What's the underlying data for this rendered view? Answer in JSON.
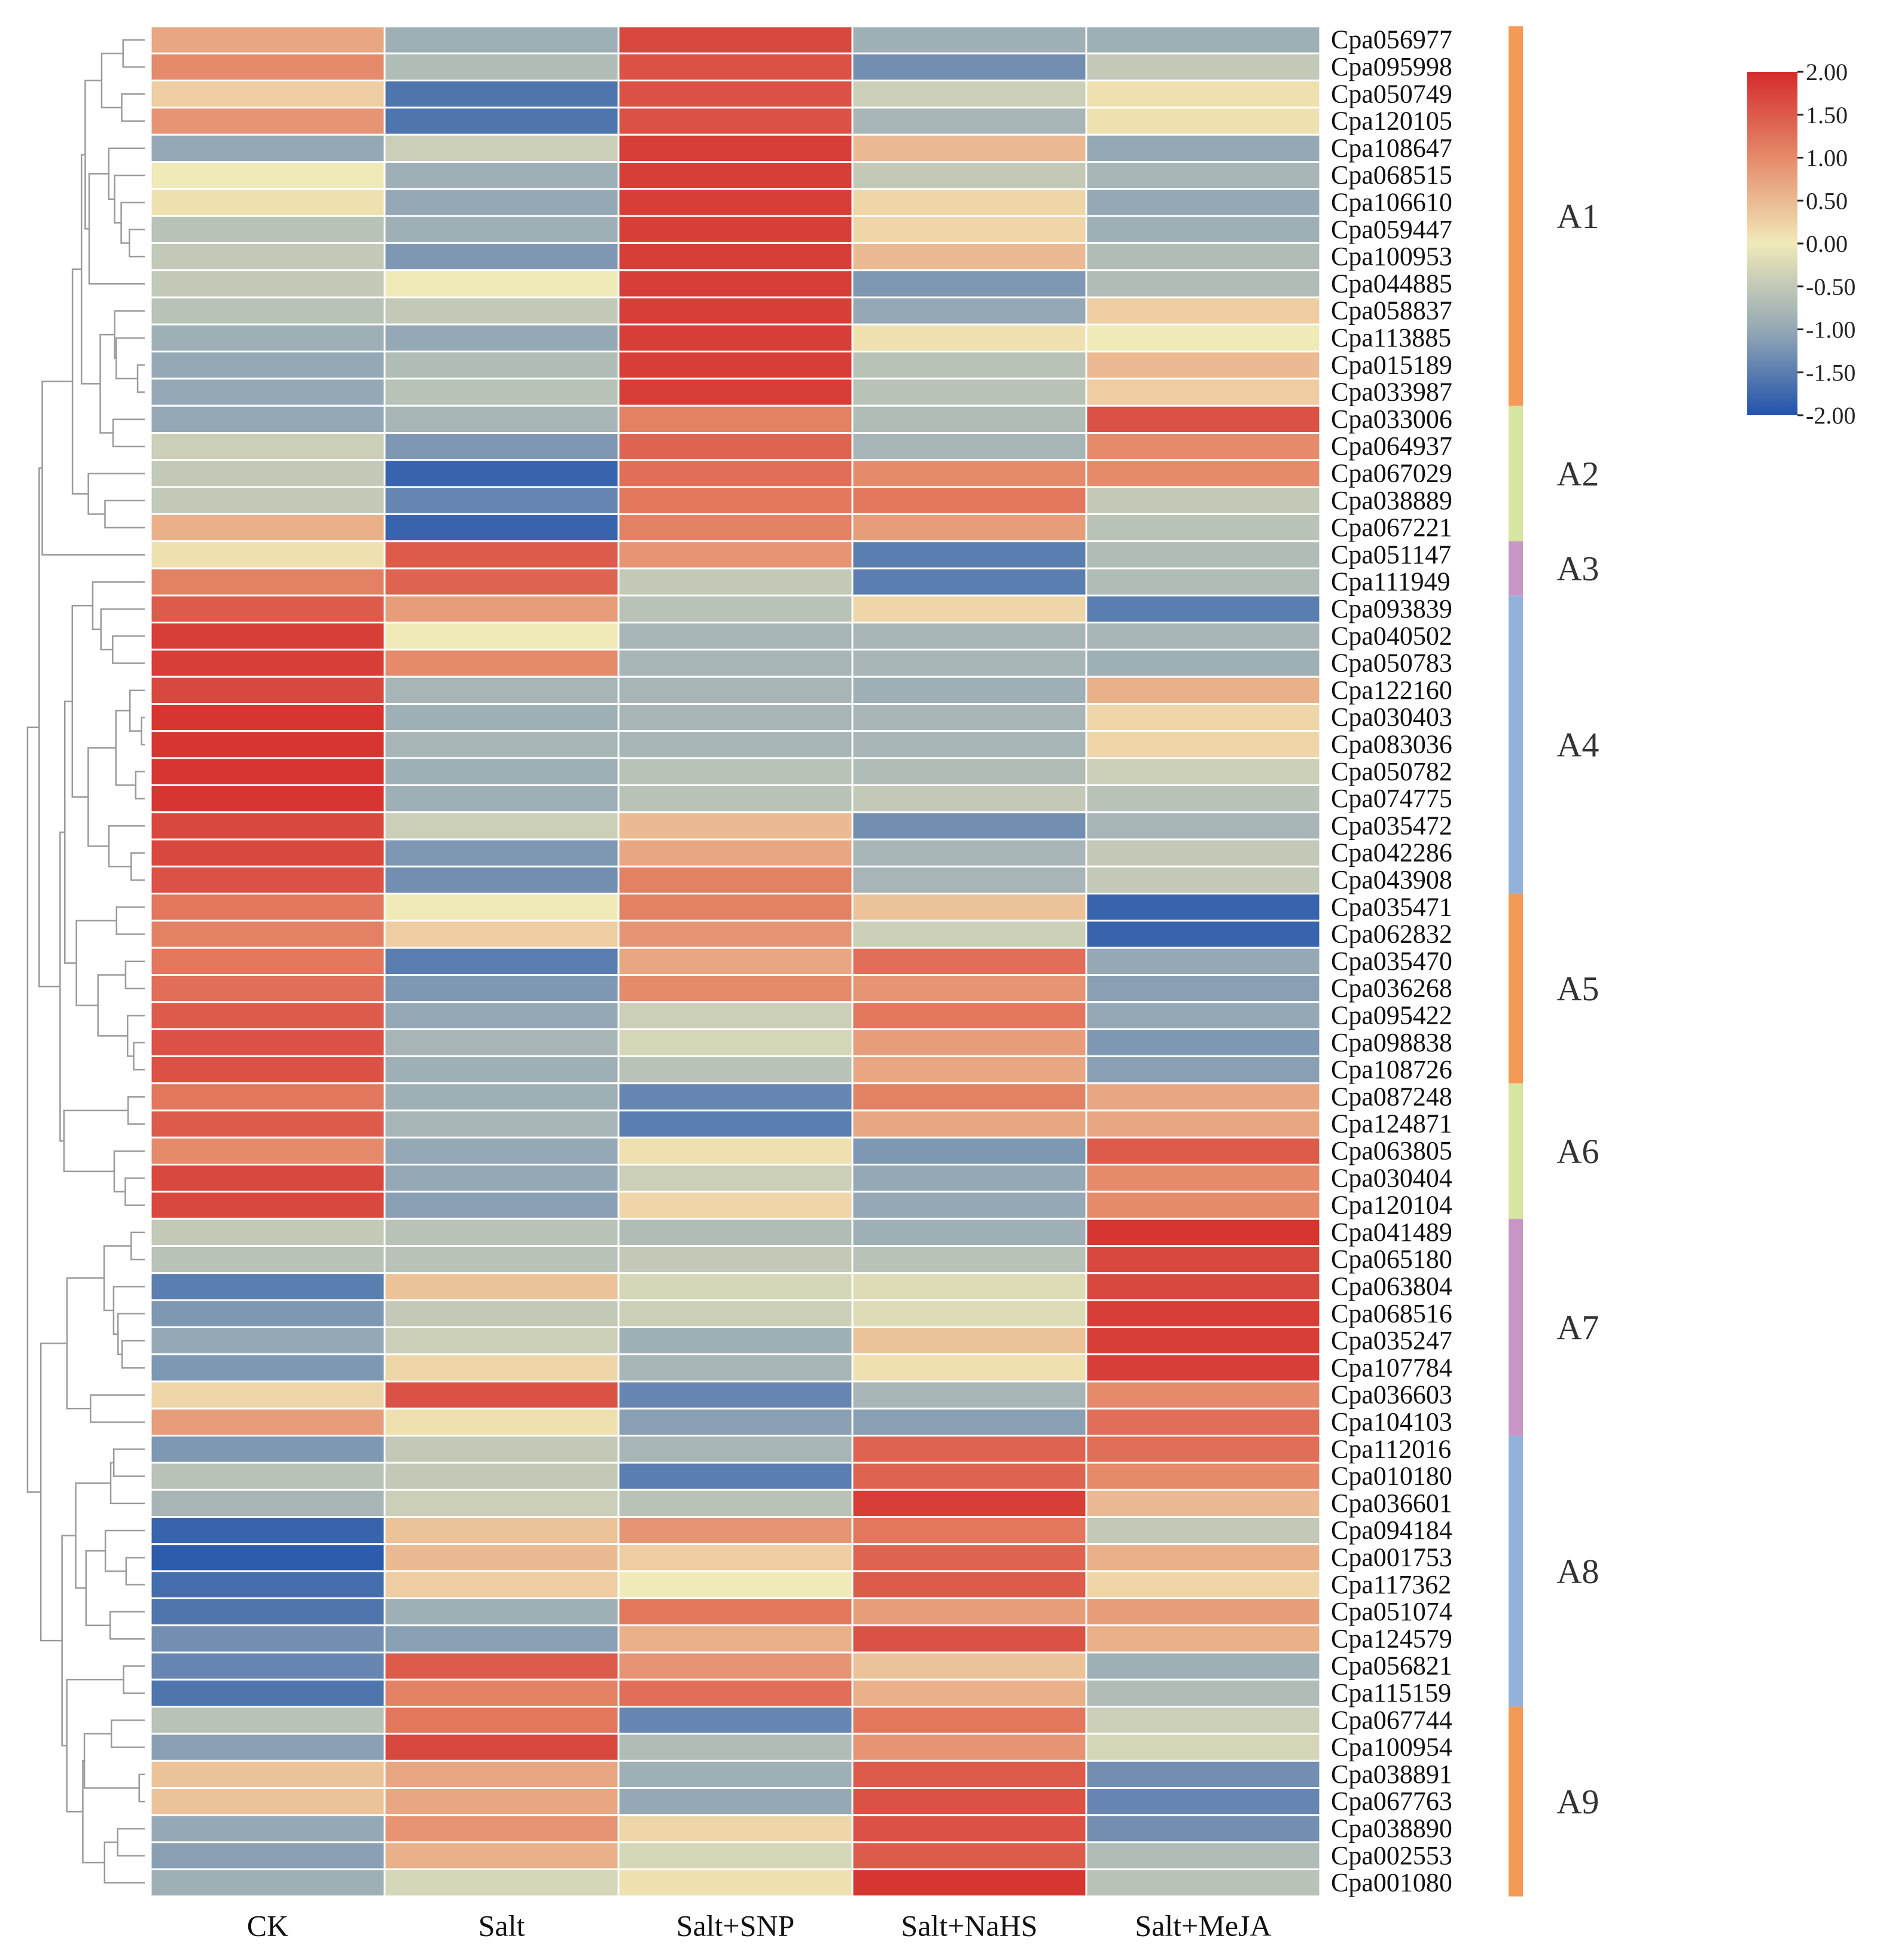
{
  "chart_data": {
    "type": "heatmap",
    "title": "",
    "columns": [
      "CK",
      "Salt",
      "Salt+SNP",
      "Salt+NaHS",
      "Salt+MeJA"
    ],
    "rows": [
      "Cpa056977",
      "Cpa095998",
      "Cpa050749",
      "Cpa120105",
      "Cpa108647",
      "Cpa068515",
      "Cpa106610",
      "Cpa059447",
      "Cpa100953",
      "Cpa044885",
      "Cpa058837",
      "Cpa113885",
      "Cpa015189",
      "Cpa033987",
      "Cpa033006",
      "Cpa064937",
      "Cpa067029",
      "Cpa038889",
      "Cpa067221",
      "Cpa051147",
      "Cpa111949",
      "Cpa093839",
      "Cpa040502",
      "Cpa050783",
      "Cpa122160",
      "Cpa030403",
      "Cpa083036",
      "Cpa050782",
      "Cpa074775",
      "Cpa035472",
      "Cpa042286",
      "Cpa043908",
      "Cpa035471",
      "Cpa062832",
      "Cpa035470",
      "Cpa036268",
      "Cpa095422",
      "Cpa098838",
      "Cpa108726",
      "Cpa087248",
      "Cpa124871",
      "Cpa063805",
      "Cpa030404",
      "Cpa120104",
      "Cpa041489",
      "Cpa065180",
      "Cpa063804",
      "Cpa068516",
      "Cpa035247",
      "Cpa107784",
      "Cpa036603",
      "Cpa104103",
      "Cpa112016",
      "Cpa010180",
      "Cpa036601",
      "Cpa094184",
      "Cpa001753",
      "Cpa117362",
      "Cpa051074",
      "Cpa124579",
      "Cpa056821",
      "Cpa115159",
      "Cpa067744",
      "Cpa100954",
      "Cpa038891",
      "Cpa067763",
      "Cpa038890",
      "Cpa002553",
      "Cpa001080"
    ],
    "values": [
      [
        0.7,
        -0.9,
        1.7,
        -0.9,
        -0.9
      ],
      [
        1.0,
        -0.7,
        1.6,
        -1.3,
        -0.5
      ],
      [
        0.3,
        -1.6,
        1.6,
        -0.4,
        0.1
      ],
      [
        0.9,
        -1.6,
        1.6,
        -0.8,
        0.1
      ],
      [
        -1.0,
        -0.4,
        1.8,
        0.5,
        -1.0
      ],
      [
        0.0,
        -0.9,
        1.8,
        -0.5,
        -0.8
      ],
      [
        0.1,
        -1.0,
        1.8,
        0.2,
        -1.0
      ],
      [
        -0.6,
        -0.9,
        1.8,
        0.2,
        -0.9
      ],
      [
        -0.5,
        -1.2,
        1.8,
        0.5,
        -0.7
      ],
      [
        -0.5,
        0.0,
        1.8,
        -1.2,
        -0.7
      ],
      [
        -0.6,
        -0.5,
        1.8,
        -1.0,
        0.3
      ],
      [
        -0.9,
        -1.0,
        1.8,
        0.1,
        0.0
      ],
      [
        -1.0,
        -0.7,
        1.8,
        -0.6,
        0.5
      ],
      [
        -1.0,
        -0.6,
        1.8,
        -0.6,
        0.3
      ],
      [
        -1.0,
        -0.8,
        1.1,
        -0.7,
        1.6
      ],
      [
        -0.4,
        -1.2,
        1.4,
        -0.8,
        1.0
      ],
      [
        -0.5,
        -1.8,
        1.3,
        1.0,
        1.0
      ],
      [
        -0.5,
        -1.4,
        1.2,
        1.2,
        -0.5
      ],
      [
        0.6,
        -1.8,
        1.1,
        0.8,
        -0.6
      ],
      [
        0.1,
        1.5,
        0.9,
        -1.5,
        -0.7
      ],
      [
        1.1,
        1.4,
        -0.5,
        -1.5,
        -0.7
      ],
      [
        1.5,
        0.8,
        -0.6,
        0.2,
        -1.5
      ],
      [
        1.8,
        0.0,
        -0.8,
        -0.8,
        -0.8
      ],
      [
        1.8,
        1.0,
        -0.8,
        -0.8,
        -0.9
      ],
      [
        1.7,
        -0.8,
        -0.8,
        -0.9,
        0.6
      ],
      [
        1.9,
        -0.9,
        -0.8,
        -0.8,
        0.2
      ],
      [
        1.9,
        -0.8,
        -0.8,
        -0.8,
        0.2
      ],
      [
        1.9,
        -0.9,
        -0.6,
        -0.7,
        -0.4
      ],
      [
        1.9,
        -0.9,
        -0.6,
        -0.5,
        -0.6
      ],
      [
        1.7,
        -0.4,
        0.5,
        -1.3,
        -0.8
      ],
      [
        1.7,
        -1.2,
        0.7,
        -0.8,
        -0.5
      ],
      [
        1.6,
        -1.3,
        1.1,
        -0.8,
        -0.5
      ],
      [
        1.2,
        0.0,
        1.1,
        0.4,
        -1.8
      ],
      [
        1.1,
        0.3,
        0.9,
        -0.4,
        -1.8
      ],
      [
        1.2,
        -1.5,
        0.7,
        1.3,
        -1.0
      ],
      [
        1.3,
        -1.2,
        1.0,
        0.9,
        -1.1
      ],
      [
        1.5,
        -1.0,
        -0.4,
        1.2,
        -1.0
      ],
      [
        1.6,
        -0.8,
        -0.3,
        0.8,
        -1.2
      ],
      [
        1.6,
        -0.9,
        -0.6,
        0.7,
        -1.1
      ],
      [
        1.2,
        -0.9,
        -1.4,
        1.1,
        0.7
      ],
      [
        1.5,
        -0.8,
        -1.5,
        0.7,
        0.7
      ],
      [
        1.0,
        -1.0,
        0.1,
        -1.2,
        1.5
      ],
      [
        1.7,
        -1.0,
        -0.4,
        -1.0,
        1.0
      ],
      [
        1.7,
        -1.1,
        0.2,
        -1.0,
        1.0
      ],
      [
        -0.5,
        -0.6,
        -0.7,
        -0.9,
        1.9
      ],
      [
        -0.6,
        -0.6,
        -0.5,
        -0.6,
        1.7
      ],
      [
        -1.5,
        0.4,
        -0.3,
        -0.2,
        1.7
      ],
      [
        -1.2,
        -0.5,
        -0.4,
        -0.2,
        1.8
      ],
      [
        -1.0,
        -0.4,
        -0.9,
        0.4,
        1.8
      ],
      [
        -1.2,
        0.2,
        -0.8,
        0.1,
        1.8
      ],
      [
        0.2,
        1.6,
        -1.4,
        -0.8,
        1.0
      ],
      [
        0.8,
        0.1,
        -1.1,
        -1.1,
        1.3
      ],
      [
        -1.2,
        -0.5,
        -0.8,
        1.4,
        1.3
      ],
      [
        -0.6,
        -0.5,
        -1.5,
        1.4,
        1.0
      ],
      [
        -0.8,
        -0.4,
        -0.6,
        1.8,
        0.5
      ],
      [
        -1.8,
        0.4,
        0.9,
        1.2,
        -0.5
      ],
      [
        -1.9,
        0.5,
        0.3,
        1.4,
        0.6
      ],
      [
        -1.7,
        0.3,
        0.0,
        1.5,
        0.2
      ],
      [
        -1.6,
        -0.9,
        1.2,
        0.8,
        0.8
      ],
      [
        -1.3,
        -1.1,
        0.6,
        1.6,
        0.6
      ],
      [
        -1.4,
        1.5,
        0.9,
        0.4,
        -0.9
      ],
      [
        -1.6,
        1.1,
        1.3,
        0.6,
        -0.7
      ],
      [
        -0.6,
        1.2,
        -1.4,
        1.2,
        -0.4
      ],
      [
        -1.1,
        1.7,
        -0.7,
        0.9,
        -0.3
      ],
      [
        0.4,
        0.7,
        -0.9,
        1.5,
        -1.3
      ],
      [
        0.4,
        0.7,
        -1.0,
        1.6,
        -1.4
      ],
      [
        -1.0,
        0.9,
        0.2,
        1.6,
        -1.3
      ],
      [
        -1.1,
        0.6,
        -0.3,
        1.5,
        -0.7
      ],
      [
        -0.9,
        -0.3,
        0.1,
        1.9,
        -0.6
      ]
    ],
    "scale": {
      "min": -2.0,
      "max": 2.0,
      "tick_labels": [
        "2.00",
        "1.50",
        "1.00",
        "0.50",
        "0.00",
        "-0.50",
        "-1.00",
        "-1.50",
        "-2.00"
      ],
      "colors": {
        "low": "#2153ab",
        "mid_low": "#95a8b5",
        "mid": "#f0e9b8",
        "mid_high": "#e58a6b",
        "high": "#d42b2b"
      }
    },
    "groups": [
      {
        "label": "A1",
        "start": 0,
        "end": 13,
        "color": "#f59a55"
      },
      {
        "label": "A2",
        "start": 14,
        "end": 18,
        "color": "#d6e5a0"
      },
      {
        "label": "A3",
        "start": 19,
        "end": 20,
        "color": "#c995c5"
      },
      {
        "label": "A4",
        "start": 21,
        "end": 31,
        "color": "#92b2dc"
      },
      {
        "label": "A5",
        "start": 32,
        "end": 38,
        "color": "#f59a55"
      },
      {
        "label": "A6",
        "start": 39,
        "end": 43,
        "color": "#d6e5a0"
      },
      {
        "label": "A7",
        "start": 44,
        "end": 51,
        "color": "#c995c5"
      },
      {
        "label": "A8",
        "start": 52,
        "end": 61,
        "color": "#92b2dc"
      },
      {
        "label": "A9",
        "start": 62,
        "end": 68,
        "color": "#f59a55"
      }
    ]
  }
}
